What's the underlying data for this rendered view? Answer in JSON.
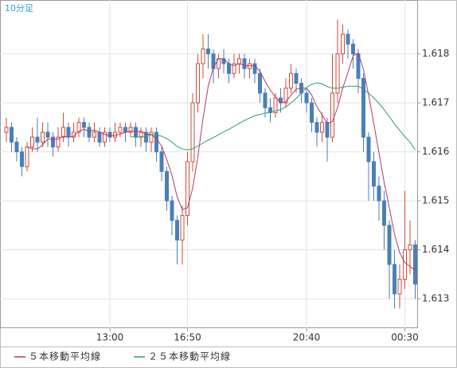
{
  "chart_data": {
    "type": "candlestick",
    "title": "10分足",
    "categories": [
      null,
      null,
      null,
      null,
      null,
      null,
      null,
      null,
      null,
      null,
      null,
      null,
      null,
      null,
      null,
      null,
      null,
      null,
      null,
      null,
      "13:00",
      null,
      null,
      null,
      null,
      null,
      null,
      null,
      null,
      null,
      null,
      null,
      null,
      null,
      null,
      "16:50",
      null,
      null,
      null,
      null,
      null,
      null,
      null,
      null,
      null,
      null,
      null,
      null,
      null,
      null,
      null,
      null,
      null,
      null,
      null,
      null,
      null,
      null,
      "20:40",
      null,
      null,
      null,
      null,
      null,
      null,
      null,
      null,
      null,
      null,
      null,
      null,
      null,
      null,
      null,
      null,
      null,
      null,
      "00:30",
      null,
      null
    ],
    "open": [
      1.6164,
      1.6165,
      1.6162,
      1.616,
      1.6157,
      1.6161,
      1.6163,
      1.6162,
      1.6164,
      1.6163,
      1.6161,
      1.6163,
      1.6165,
      1.6163,
      1.6164,
      1.6166,
      1.6165,
      1.6163,
      1.6164,
      1.6162,
      1.6164,
      1.6163,
      1.6164,
      1.6165,
      1.6164,
      1.6165,
      1.6163,
      1.6164,
      1.6162,
      1.6164,
      1.616,
      1.6156,
      1.615,
      1.6146,
      1.6142,
      1.6147,
      1.6158,
      1.617,
      1.6178,
      1.6181,
      1.618,
      1.6177,
      1.6179,
      1.6178,
      1.6176,
      1.6178,
      1.6179,
      1.6177,
      1.6178,
      1.6176,
      1.6172,
      1.6169,
      1.6168,
      1.6171,
      1.617,
      1.6173,
      1.6176,
      1.6174,
      1.6172,
      1.617,
      1.6166,
      1.6164,
      1.6166,
      1.6163,
      1.6172,
      1.618,
      1.6184,
      1.6182,
      1.618,
      1.6175,
      1.6163,
      1.6158,
      1.6153,
      1.615,
      1.6145,
      1.6137,
      1.6131,
      1.6134,
      1.614,
      1.6141
    ],
    "high": [
      1.6167,
      1.6166,
      1.6163,
      1.6161,
      1.6162,
      1.6165,
      1.6167,
      1.6166,
      1.6166,
      1.6164,
      1.6165,
      1.6168,
      1.6166,
      1.6166,
      1.6167,
      1.6167,
      1.6166,
      1.6166,
      1.6165,
      1.6165,
      1.6165,
      1.6166,
      1.6166,
      1.6166,
      1.6166,
      1.6166,
      1.6165,
      1.6165,
      1.6165,
      1.6165,
      1.6161,
      1.6157,
      1.6151,
      1.6147,
      1.6149,
      1.616,
      1.6172,
      1.618,
      1.6184,
      1.6184,
      1.6181,
      1.618,
      1.6181,
      1.6179,
      1.618,
      1.618,
      1.618,
      1.6179,
      1.6179,
      1.6177,
      1.6173,
      1.6171,
      1.6172,
      1.6173,
      1.6175,
      1.6178,
      1.6177,
      1.6175,
      1.6173,
      1.6171,
      1.6167,
      1.6168,
      1.6167,
      1.618,
      1.6187,
      1.6186,
      1.6185,
      1.6183,
      1.6181,
      1.6176,
      1.6164,
      1.616,
      1.6155,
      1.6152,
      1.6146,
      1.614,
      1.6137,
      1.6152,
      1.6146,
      1.6142
    ],
    "low": [
      1.6162,
      1.616,
      1.6158,
      1.6155,
      1.6156,
      1.616,
      1.616,
      1.6161,
      1.6161,
      1.6159,
      1.616,
      1.6162,
      1.6161,
      1.6162,
      1.6163,
      1.6163,
      1.6162,
      1.6162,
      1.6161,
      1.6161,
      1.6162,
      1.6162,
      1.6163,
      1.6162,
      1.6163,
      1.6161,
      1.6161,
      1.616,
      1.616,
      1.6158,
      1.6154,
      1.6148,
      1.6143,
      1.6137,
      1.6137,
      1.6145,
      1.6156,
      1.6168,
      1.6175,
      1.6177,
      1.6174,
      1.6175,
      1.6176,
      1.6174,
      1.6175,
      1.6176,
      1.6175,
      1.6175,
      1.6174,
      1.617,
      1.6167,
      1.6166,
      1.6167,
      1.6168,
      1.6169,
      1.6172,
      1.6172,
      1.617,
      1.6168,
      1.6164,
      1.6161,
      1.6162,
      1.6158,
      1.6162,
      1.617,
      1.6178,
      1.6179,
      1.6177,
      1.6172,
      1.616,
      1.615,
      1.615,
      1.6146,
      1.614,
      1.613,
      1.6128,
      1.6128,
      1.6132,
      1.6135,
      1.613
    ],
    "close": [
      1.6165,
      1.6162,
      1.616,
      1.6157,
      1.6161,
      1.6163,
      1.6162,
      1.6164,
      1.6163,
      1.6161,
      1.6163,
      1.6165,
      1.6163,
      1.6164,
      1.6166,
      1.6165,
      1.6163,
      1.6164,
      1.6162,
      1.6164,
      1.6163,
      1.6164,
      1.6165,
      1.6164,
      1.6165,
      1.6163,
      1.6164,
      1.6162,
      1.6164,
      1.616,
      1.6156,
      1.615,
      1.6146,
      1.6142,
      1.6147,
      1.6158,
      1.617,
      1.6178,
      1.6181,
      1.618,
      1.6177,
      1.6179,
      1.6178,
      1.6176,
      1.6178,
      1.6179,
      1.6177,
      1.6178,
      1.6176,
      1.6172,
      1.6169,
      1.6168,
      1.6171,
      1.617,
      1.6173,
      1.6176,
      1.6174,
      1.6172,
      1.617,
      1.6166,
      1.6164,
      1.6166,
      1.6163,
      1.6172,
      1.618,
      1.6184,
      1.6182,
      1.618,
      1.6175,
      1.6163,
      1.6158,
      1.6153,
      1.615,
      1.6145,
      1.6137,
      1.6131,
      1.6134,
      1.614,
      1.6141,
      1.6133
    ],
    "up_color": "#d04a3a",
    "down_color": "#4a7fb8",
    "series": [
      {
        "name": "５本移動平均線",
        "color": "#b03a6a",
        "values": [
          null,
          null,
          null,
          null,
          1.6161,
          1.61606,
          1.61606,
          1.61614,
          1.61626,
          1.61626,
          1.61626,
          1.61632,
          1.6163,
          1.61632,
          1.61642,
          1.61646,
          1.61642,
          1.61644,
          1.6164,
          1.61636,
          1.61632,
          1.61634,
          1.61636,
          1.6164,
          1.61642,
          1.61642,
          1.61642,
          1.61636,
          1.61636,
          1.61626,
          1.61612,
          1.61584,
          1.61552,
          1.61508,
          1.61482,
          1.61486,
          1.61526,
          1.6159,
          1.61668,
          1.61734,
          1.61772,
          1.6179,
          1.6179,
          1.6178,
          1.61776,
          1.6178,
          1.61776,
          1.61776,
          1.61776,
          1.61764,
          1.61744,
          1.61726,
          1.61712,
          1.617,
          1.61702,
          1.61716,
          1.61728,
          1.6173,
          1.6173,
          1.61716,
          1.61692,
          1.61676,
          1.61658,
          1.61662,
          1.6169,
          1.6173,
          1.61762,
          1.61796,
          1.61802,
          1.61768,
          1.61716,
          1.61658,
          1.61598,
          1.61538,
          1.61486,
          1.61432,
          1.61394,
          1.61374,
          1.61366,
          1.61358
        ]
      },
      {
        "name": "２５本移動平均線",
        "color": "#2f9e6a",
        "values": [
          null,
          null,
          null,
          null,
          null,
          null,
          null,
          null,
          null,
          null,
          null,
          null,
          null,
          null,
          null,
          null,
          null,
          null,
          null,
          null,
          null,
          null,
          null,
          null,
          1.61631,
          1.6163,
          1.61631,
          1.61632,
          1.61635,
          1.61634,
          1.61632,
          1.61627,
          1.6162,
          1.61611,
          1.61606,
          1.61604,
          1.61606,
          1.61612,
          1.61618,
          1.61624,
          1.61629,
          1.61635,
          1.61641,
          1.61646,
          1.61652,
          1.61658,
          1.61664,
          1.61669,
          1.61674,
          1.61676,
          1.61679,
          1.6168,
          1.61684,
          1.61686,
          1.61692,
          1.617,
          1.61709,
          1.6172,
          1.61731,
          1.61738,
          1.61741,
          1.61739,
          1.61733,
          1.6173,
          1.6173,
          1.61732,
          1.61734,
          1.61734,
          1.61734,
          1.61728,
          1.6172,
          1.6171,
          1.61699,
          1.61686,
          1.61672,
          1.61657,
          1.61644,
          1.61631,
          1.6162,
          1.61604
        ]
      }
    ],
    "ylim": [
      1.6124,
      1.6191
    ],
    "yticks": [
      1.613,
      1.614,
      1.615,
      1.616,
      1.617,
      1.618
    ],
    "grid": true
  }
}
